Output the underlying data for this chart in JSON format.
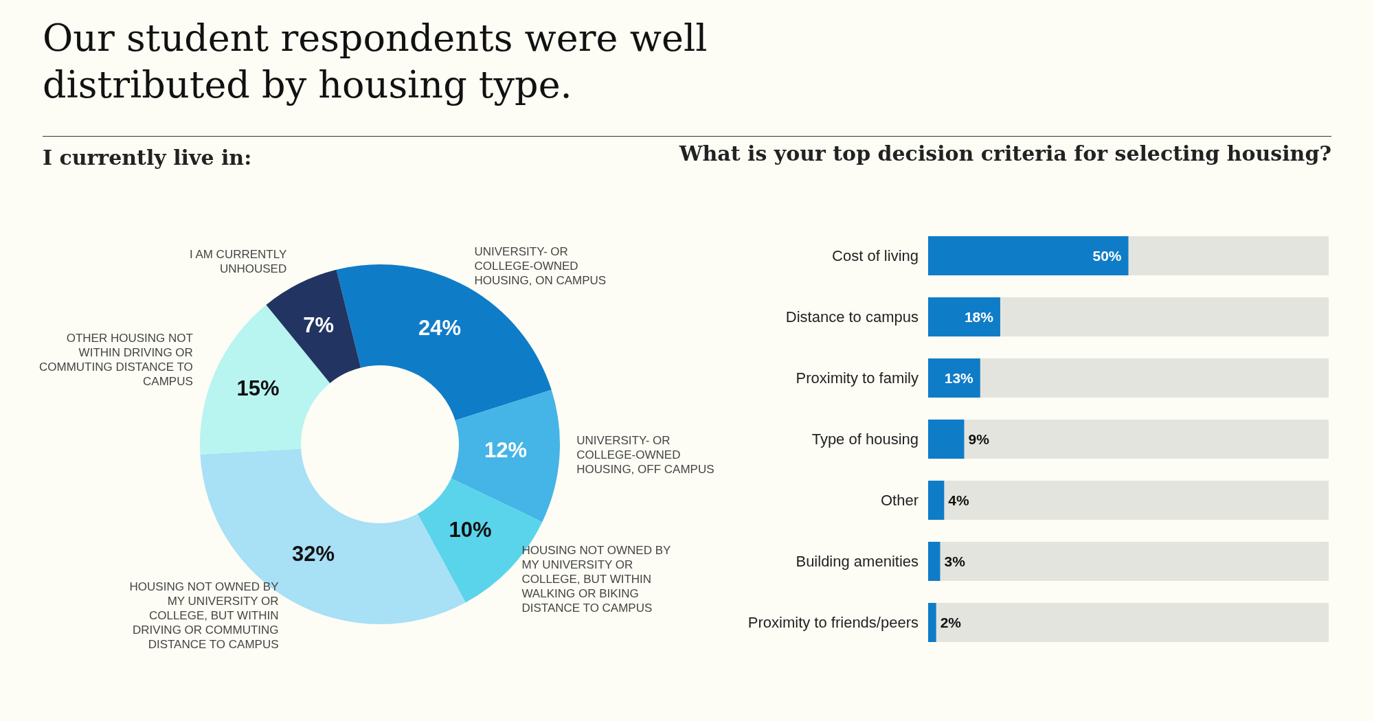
{
  "chart_data": [
    {
      "type": "donut",
      "title": "Our student respondents were well distributed by housing type.",
      "subtitle": "I currently live in:",
      "categories": [
        "UNIVERSITY- OR COLLEGE-OWNED HOUSING, ON CAMPUS",
        "UNIVERSITY- OR COLLEGE-OWNED HOUSING, OFF CAMPUS",
        "HOUSING NOT OWNED BY MY UNIVERSITY OR COLLEGE, BUT WITHIN WALKING OR BIKING DISTANCE TO CAMPUS",
        "HOUSING NOT OWNED BY MY UNIVERSITY OR COLLEGE, BUT WITHIN DRIVING OR COMMUTING DISTANCE TO CAMPUS",
        "OTHER HOUSING NOT WITHIN DRIVING OR COMMUTING DISTANCE TO CAMPUS",
        "I AM CURRENTLY UNHOUSED"
      ],
      "values": [
        24,
        12,
        10,
        32,
        15,
        7
      ],
      "value_labels": [
        "24%",
        "12%",
        "10%",
        "32%",
        "15%",
        "7%"
      ],
      "colors": [
        "#0f7cc8",
        "#45b4e6",
        "#5ad4ea",
        "#a8e0f5",
        "#b8f4f0",
        "#223562"
      ]
    },
    {
      "type": "bar",
      "orientation": "horizontal",
      "title": "What is your top decision criteria for selecting housing?",
      "categories": [
        "Cost of living",
        "Distance to campus",
        "Proximity to family",
        "Type of housing",
        "Other",
        "Building amenities",
        "Proximity to friends/peers"
      ],
      "values": [
        50,
        18,
        13,
        9,
        4,
        3,
        2
      ],
      "value_labels": [
        "50%",
        "18%",
        "13%",
        "9%",
        "4%",
        "3%",
        "2%"
      ],
      "color": "#0f7cc8",
      "xlim": [
        0,
        100
      ],
      "tick_labels": "y"
    }
  ]
}
